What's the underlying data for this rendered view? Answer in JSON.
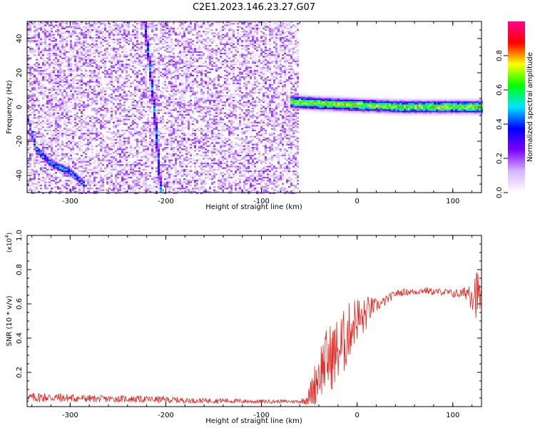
{
  "title": "C2E1.2023.146.23.27.G07",
  "colors": {
    "snr_line": "#e8221c",
    "spectrogram_background": "#ffffff"
  },
  "chart_data": [
    {
      "type": "heatmap",
      "title": "C2E1.2023.146.23.27.G07",
      "xlabel": "Height of straight line (km)",
      "ylabel": "Frequency (Hz)",
      "xlim": [
        -345,
        130
      ],
      "ylim": [
        -50,
        50
      ],
      "xticks": [
        -300,
        -200,
        -100,
        0,
        100
      ],
      "yticks": [
        -40,
        -20,
        0,
        20,
        40
      ],
      "x_tick_labels": [
        "-300",
        "-200",
        "-100",
        "0",
        "100"
      ],
      "y_tick_labels": [
        "-40",
        "-20",
        "0",
        "20",
        "40"
      ],
      "grid": false,
      "colorbar": {
        "label": "Normalized spectral amplitude",
        "range": [
          0.0,
          1.0
        ],
        "ticks": [
          0.0,
          0.2,
          0.4,
          0.6,
          0.8
        ],
        "tick_labels": [
          "0.0",
          "0.2",
          "0.4",
          "0.6",
          "0.8"
        ],
        "colormap": [
          "#ffffff",
          "#d8b4ff",
          "#7a00ff",
          "#0000ff",
          "#00e5ff",
          "#00ff00",
          "#ffff00",
          "#ff0000",
          "#ff0090"
        ]
      },
      "features": [
        {
          "name": "noise",
          "x_range": [
            -345,
            -60
          ],
          "freq_range": [
            -50,
            50
          ],
          "amplitude": 0.15
        },
        {
          "name": "strong signal band",
          "x_range": [
            -70,
            130
          ],
          "center_freq": [
            [
              -70,
              3
            ],
            [
              -40,
              2
            ],
            [
              0,
              1
            ],
            [
              50,
              0
            ],
            [
              100,
              0
            ],
            [
              130,
              0
            ]
          ],
          "amplitude": 0.8
        },
        {
          "name": "descending trace",
          "points": [
            [
              -345,
              -5
            ],
            [
              -335,
              -25
            ],
            [
              -320,
              -33
            ],
            [
              -300,
              -38
            ],
            [
              -285,
              -45
            ]
          ],
          "amplitude": 0.5
        },
        {
          "name": "steep trace",
          "points": [
            [
              -222,
              50
            ],
            [
              -212,
              0
            ],
            [
              -205,
              -50
            ]
          ],
          "amplitude": 0.45
        }
      ]
    },
    {
      "type": "line",
      "xlabel": "Height of straight line (km)",
      "ylabel": "SNR (10 * v/v)",
      "y_scale_label": "(x10^4)",
      "y_scale_base": "(x10",
      "y_scale_exp": "4",
      "y_scale_close": ")",
      "xlim": [
        -345,
        130
      ],
      "ylim": [
        0,
        1.0
      ],
      "xticks": [
        -300,
        -200,
        -100,
        0,
        100
      ],
      "yticks": [
        0.2,
        0.4,
        0.6,
        0.8,
        1.0
      ],
      "x_tick_labels": [
        "-300",
        "-200",
        "-100",
        "0",
        "100"
      ],
      "y_tick_labels": [
        "0.2",
        "0.4",
        "0.6",
        "0.8",
        "1.0"
      ],
      "grid": false,
      "series": [
        {
          "x": [
            -345,
            -330,
            -300,
            -270,
            -240,
            -200,
            -170,
            -140,
            -110,
            -80,
            -60,
            -55,
            -50,
            -45,
            -40,
            -35,
            -30,
            -25,
            -20,
            -15,
            -10,
            -5,
            0,
            5,
            10,
            15,
            20,
            25,
            30,
            35,
            40,
            50,
            60,
            70,
            80,
            90,
            100,
            110,
            115,
            120,
            125,
            130
          ],
          "values": [
            0.05,
            0.055,
            0.05,
            0.045,
            0.045,
            0.04,
            0.035,
            0.035,
            0.03,
            0.03,
            0.03,
            0.035,
            0.06,
            0.12,
            0.2,
            0.25,
            0.28,
            0.3,
            0.33,
            0.36,
            0.42,
            0.48,
            0.52,
            0.5,
            0.55,
            0.58,
            0.59,
            0.6,
            0.62,
            0.64,
            0.66,
            0.67,
            0.67,
            0.68,
            0.67,
            0.67,
            0.66,
            0.66,
            0.67,
            0.68,
            0.66,
            0.64
          ],
          "noise": [
            0.03,
            0.03,
            0.025,
            0.02,
            0.02,
            0.02,
            0.015,
            0.015,
            0.012,
            0.01,
            0.01,
            0.02,
            0.06,
            0.12,
            0.16,
            0.18,
            0.2,
            0.2,
            0.2,
            0.2,
            0.18,
            0.15,
            0.14,
            0.12,
            0.1,
            0.06,
            0.04,
            0.03,
            0.03,
            0.025,
            0.02,
            0.02,
            0.02,
            0.02,
            0.02,
            0.02,
            0.025,
            0.03,
            0.05,
            0.12,
            0.15,
            0.1
          ]
        }
      ]
    }
  ]
}
